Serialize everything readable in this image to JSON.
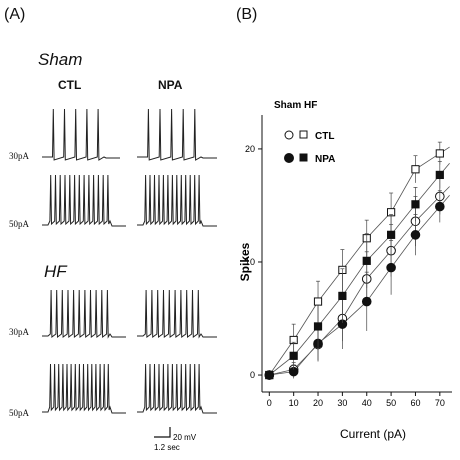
{
  "panel_a": {
    "label": "(A)",
    "conditions": [
      {
        "name": "Sham",
        "columns": [
          "CTL",
          "NPA"
        ],
        "rows": [
          "30pA",
          "50pA"
        ]
      },
      {
        "name": "HF",
        "rows": [
          "30pA",
          "50pA"
        ]
      }
    ],
    "scalebar": {
      "voltage": "20 mV",
      "time": "1.2 sec"
    }
  },
  "panel_b": {
    "label": "(B)"
  },
  "chart_data": {
    "type": "scatter",
    "subtitle": "Sham  HF",
    "xlabel": "Current (pA)",
    "ylabel": "Spikes",
    "x": [
      0,
      10,
      20,
      30,
      40,
      50,
      60,
      70
    ],
    "xlim": [
      -3,
      75
    ],
    "ylim": [
      -1.5,
      23
    ],
    "xticks": [
      "0",
      "10",
      "20",
      "30",
      "40",
      "50",
      "60",
      "70"
    ],
    "yticks": [
      "0",
      "10",
      "20"
    ],
    "legend": {
      "labels": [
        "CTL",
        "NPA"
      ],
      "placement": "top-left"
    },
    "series": [
      {
        "group": "Sham",
        "condition": "CTL",
        "marker": "open-circle",
        "values": [
          0,
          0.5,
          2.7,
          5.0,
          8.5,
          11.0,
          13.6,
          15.8
        ],
        "errors": [
          0.2,
          0.6,
          1.4,
          2.0,
          2.4,
          2.3,
          2.2,
          1.6
        ]
      },
      {
        "group": "Sham",
        "condition": "NPA",
        "marker": "filled-circle",
        "values": [
          0,
          0.3,
          2.8,
          4.5,
          6.5,
          9.5,
          12.4,
          14.9
        ],
        "errors": [
          0.2,
          0.6,
          1.6,
          2.2,
          2.6,
          2.4,
          1.8,
          1.4
        ]
      },
      {
        "group": "HF",
        "condition": "CTL",
        "marker": "open-square",
        "values": [
          0,
          3.1,
          6.5,
          9.3,
          12.1,
          14.4,
          18.2,
          19.6
        ],
        "errors": [
          0.2,
          1.4,
          1.8,
          1.8,
          1.6,
          1.7,
          1.2,
          1.0
        ]
      },
      {
        "group": "HF",
        "condition": "NPA",
        "marker": "filled-square",
        "values": [
          0,
          1.7,
          4.3,
          7.0,
          10.1,
          12.4,
          15.1,
          17.7
        ],
        "errors": [
          0.2,
          1.2,
          1.9,
          2.4,
          2.4,
          1.8,
          1.5,
          1.2
        ]
      }
    ]
  }
}
